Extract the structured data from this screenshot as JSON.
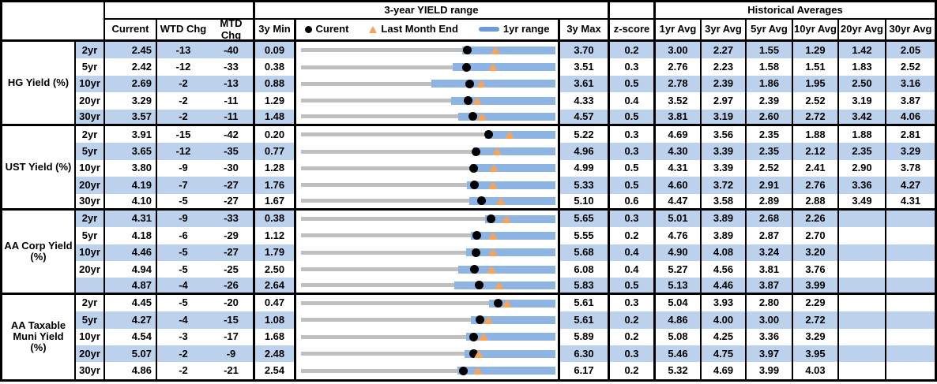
{
  "header": {
    "range_title": "3-year YIELD range",
    "hist_title": "Historical Averages",
    "col_current": "Current",
    "col_wtd": "WTD Chg",
    "col_mtd": "MTD Chg",
    "col_3y_min": "3y Min",
    "col_3y_max": "3y Max",
    "col_zscore": "z-score",
    "avg_cols": [
      "1yr Avg",
      "3yr Avg",
      "5yr Avg",
      "10yr Avg",
      "20yr Avg",
      "30yr Avg"
    ],
    "legend": {
      "current": "Curent",
      "last_month_end": "Last Month End",
      "yr1_range": "1yr range"
    }
  },
  "colors": {
    "band_blue": "#BCD2EC",
    "range_bar_blue": "#8EB4E3",
    "legend_dash_blue": "#6D9BD5",
    "track_gray": "#BFBFBF",
    "marker_orange": "#F5A45C",
    "marker_black": "#000000"
  },
  "chart_data": {
    "type": "range-dot-table",
    "unit": "%",
    "note": "Each row: gray line spans 3y Min to 3y Max; blue bar is 1yr range (ends at 3y Max); black dot = Current; orange triangle = Last Month End (Current - MTD Chg bps).",
    "groups": [
      {
        "label": "HG Yield (%)",
        "rows": [
          {
            "tenor": "2yr",
            "current": "2.45",
            "wtd": "-13",
            "mtd": "-40",
            "min": "0.09",
            "max": "3.70",
            "z": "0.2",
            "yr1_lo": "2.38",
            "avgs": [
              "3.00",
              "2.27",
              "1.55",
              "1.29",
              "1.42",
              "2.05"
            ]
          },
          {
            "tenor": "5yr",
            "current": "2.42",
            "wtd": "-12",
            "mtd": "-33",
            "min": "0.38",
            "max": "3.51",
            "z": "0.3",
            "yr1_lo": "2.25",
            "avgs": [
              "2.76",
              "2.23",
              "1.58",
              "1.51",
              "1.83",
              "2.52"
            ]
          },
          {
            "tenor": "10yr",
            "current": "2.69",
            "wtd": "-2",
            "mtd": "-13",
            "min": "0.88",
            "max": "3.61",
            "z": "0.5",
            "yr1_lo": "2.28",
            "avgs": [
              "2.78",
              "2.39",
              "1.86",
              "1.95",
              "2.50",
              "3.16"
            ]
          },
          {
            "tenor": "20yr",
            "current": "3.29",
            "wtd": "-2",
            "mtd": "-11",
            "min": "1.29",
            "max": "4.33",
            "z": "0.4",
            "yr1_lo": "3.08",
            "avgs": [
              "3.52",
              "2.97",
              "2.39",
              "2.52",
              "3.19",
              "3.87"
            ]
          },
          {
            "tenor": "30yr",
            "current": "3.57",
            "wtd": "-2",
            "mtd": "-11",
            "min": "1.48",
            "max": "4.57",
            "z": "0.5",
            "yr1_lo": "3.39",
            "avgs": [
              "3.81",
              "3.19",
              "2.60",
              "2.72",
              "3.42",
              "4.06"
            ]
          }
        ]
      },
      {
        "label": "UST Yield (%)",
        "rows": [
          {
            "tenor": "2yr",
            "current": "3.91",
            "wtd": "-15",
            "mtd": "-42",
            "min": "0.20",
            "max": "5.22",
            "z": "0.3",
            "yr1_lo": "3.83",
            "avgs": [
              "4.69",
              "3.56",
              "2.35",
              "1.88",
              "1.88",
              "2.81"
            ]
          },
          {
            "tenor": "5yr",
            "current": "3.65",
            "wtd": "-12",
            "mtd": "-35",
            "min": "0.77",
            "max": "4.96",
            "z": "0.3",
            "yr1_lo": "3.61",
            "avgs": [
              "4.30",
              "3.39",
              "2.35",
              "2.12",
              "2.35",
              "3.29"
            ]
          },
          {
            "tenor": "10yr",
            "current": "3.80",
            "wtd": "-9",
            "mtd": "-30",
            "min": "1.28",
            "max": "4.99",
            "z": "0.5",
            "yr1_lo": "3.76",
            "avgs": [
              "4.31",
              "3.39",
              "2.52",
              "2.41",
              "2.90",
              "3.78"
            ]
          },
          {
            "tenor": "20yr",
            "current": "4.19",
            "wtd": "-7",
            "mtd": "-27",
            "min": "1.76",
            "max": "5.33",
            "z": "0.5",
            "yr1_lo": "4.09",
            "avgs": [
              "4.60",
              "3.72",
              "2.91",
              "2.76",
              "3.36",
              "4.27"
            ]
          },
          {
            "tenor": "30yr",
            "current": "4.10",
            "wtd": "-5",
            "mtd": "-27",
            "min": "1.67",
            "max": "5.10",
            "z": "0.6",
            "yr1_lo": "3.94",
            "avgs": [
              "4.47",
              "3.58",
              "2.89",
              "2.88",
              "3.49",
              "4.31"
            ]
          }
        ]
      },
      {
        "label": "AA Corp Yield\n(%)",
        "rows": [
          {
            "tenor": "2yr",
            "current": "4.31",
            "wtd": "-9",
            "mtd": "-33",
            "min": "0.38",
            "max": "5.65",
            "z": "0.3",
            "yr1_lo": "4.19",
            "avgs": [
              "5.01",
              "3.89",
              "2.68",
              "2.26",
              "",
              ""
            ]
          },
          {
            "tenor": "5yr",
            "current": "4.18",
            "wtd": "-6",
            "mtd": "-29",
            "min": "1.12",
            "max": "5.55",
            "z": "0.2",
            "yr1_lo": "4.08",
            "avgs": [
              "4.76",
              "3.89",
              "2.87",
              "2.70",
              "",
              ""
            ]
          },
          {
            "tenor": "10yr",
            "current": "4.46",
            "wtd": "-5",
            "mtd": "-27",
            "min": "1.79",
            "max": "5.68",
            "z": "0.4",
            "yr1_lo": "4.31",
            "avgs": [
              "4.90",
              "4.08",
              "3.24",
              "3.20",
              "",
              ""
            ]
          },
          {
            "tenor": "20yr",
            "current": "4.94",
            "wtd": "-5",
            "mtd": "-25",
            "min": "2.50",
            "max": "6.08",
            "z": "0.4",
            "yr1_lo": "4.71",
            "avgs": [
              "5.27",
              "4.56",
              "3.81",
              "3.76",
              "",
              ""
            ]
          },
          {
            "tenor": "",
            "current": "4.87",
            "wtd": "-4",
            "mtd": "-26",
            "min": "2.64",
            "max": "5.83",
            "z": "0.5",
            "yr1_lo": "4.56",
            "avgs": [
              "5.13",
              "4.46",
              "3.87",
              "3.99",
              "",
              ""
            ]
          }
        ]
      },
      {
        "label": "AA Taxable\nMuni Yield\n(%)",
        "rows": [
          {
            "tenor": "2yr",
            "current": "4.45",
            "wtd": "-5",
            "mtd": "-20",
            "min": "0.47",
            "max": "5.61",
            "z": "0.3",
            "yr1_lo": "4.27",
            "avgs": [
              "5.04",
              "3.93",
              "2.80",
              "2.29",
              "",
              ""
            ]
          },
          {
            "tenor": "5yr",
            "current": "4.27",
            "wtd": "-4",
            "mtd": "-15",
            "min": "1.08",
            "max": "5.61",
            "z": "0.2",
            "yr1_lo": "4.11",
            "avgs": [
              "4.86",
              "4.00",
              "3.00",
              "2.72",
              "",
              ""
            ]
          },
          {
            "tenor": "10yr",
            "current": "4.54",
            "wtd": "-3",
            "mtd": "-17",
            "min": "1.68",
            "max": "5.89",
            "z": "0.2",
            "yr1_lo": "4.41",
            "avgs": [
              "5.08",
              "4.25",
              "3.36",
              "3.29",
              "",
              ""
            ]
          },
          {
            "tenor": "20yr",
            "current": "5.07",
            "wtd": "-2",
            "mtd": "-9",
            "min": "2.48",
            "max": "6.30",
            "z": "0.3",
            "yr1_lo": "4.94",
            "avgs": [
              "5.46",
              "4.75",
              "3.97",
              "3.95",
              "",
              ""
            ]
          },
          {
            "tenor": "30yr",
            "current": "4.86",
            "wtd": "-2",
            "mtd": "-21",
            "min": "2.54",
            "max": "6.17",
            "z": "0.2",
            "yr1_lo": "4.77",
            "avgs": [
              "5.32",
              "4.69",
              "3.99",
              "4.03",
              "",
              ""
            ]
          }
        ]
      }
    ]
  }
}
